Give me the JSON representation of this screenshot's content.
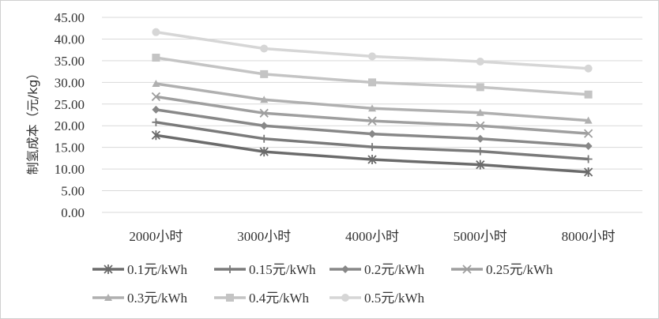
{
  "chart_data": {
    "type": "line",
    "title": "",
    "xlabel": "",
    "ylabel": "制氢成本（元/kg）",
    "ylim": [
      0,
      45
    ],
    "yticks": [
      "0.00",
      "5.00",
      "10.00",
      "15.00",
      "20.00",
      "25.00",
      "30.00",
      "35.00",
      "40.00",
      "45.00"
    ],
    "grid": true,
    "legend_position": "bottom",
    "categories": [
      "2000小时",
      "3000小时",
      "4000小时",
      "5000小时",
      "8000小时"
    ],
    "series": [
      {
        "name": "0.1元/kWh",
        "values": [
          17.8,
          14.0,
          12.2,
          11.0,
          9.3
        ],
        "color": "#6b6b6b",
        "marker": "asterisk"
      },
      {
        "name": "0.15元/kWh",
        "values": [
          20.8,
          17.0,
          15.1,
          14.1,
          12.3
        ],
        "color": "#7a7a7a",
        "marker": "plus"
      },
      {
        "name": "0.2元/kWh",
        "values": [
          23.7,
          20.0,
          18.1,
          17.0,
          15.3
        ],
        "color": "#888888",
        "marker": "diamond"
      },
      {
        "name": "0.25元/kWh",
        "values": [
          26.7,
          22.9,
          21.1,
          20.0,
          18.2
        ],
        "color": "#9f9f9f",
        "marker": "x"
      },
      {
        "name": "0.3元/kWh",
        "values": [
          29.7,
          26.0,
          24.0,
          23.0,
          21.2
        ],
        "color": "#b0b0b0",
        "marker": "triangle"
      },
      {
        "name": "0.4元/kWh",
        "values": [
          35.7,
          31.9,
          30.0,
          28.9,
          27.2
        ],
        "color": "#c4c4c4",
        "marker": "square"
      },
      {
        "name": "0.5元/kWh",
        "values": [
          41.6,
          37.8,
          36.0,
          34.8,
          33.2
        ],
        "color": "#d6d6d6",
        "marker": "circle"
      }
    ]
  }
}
